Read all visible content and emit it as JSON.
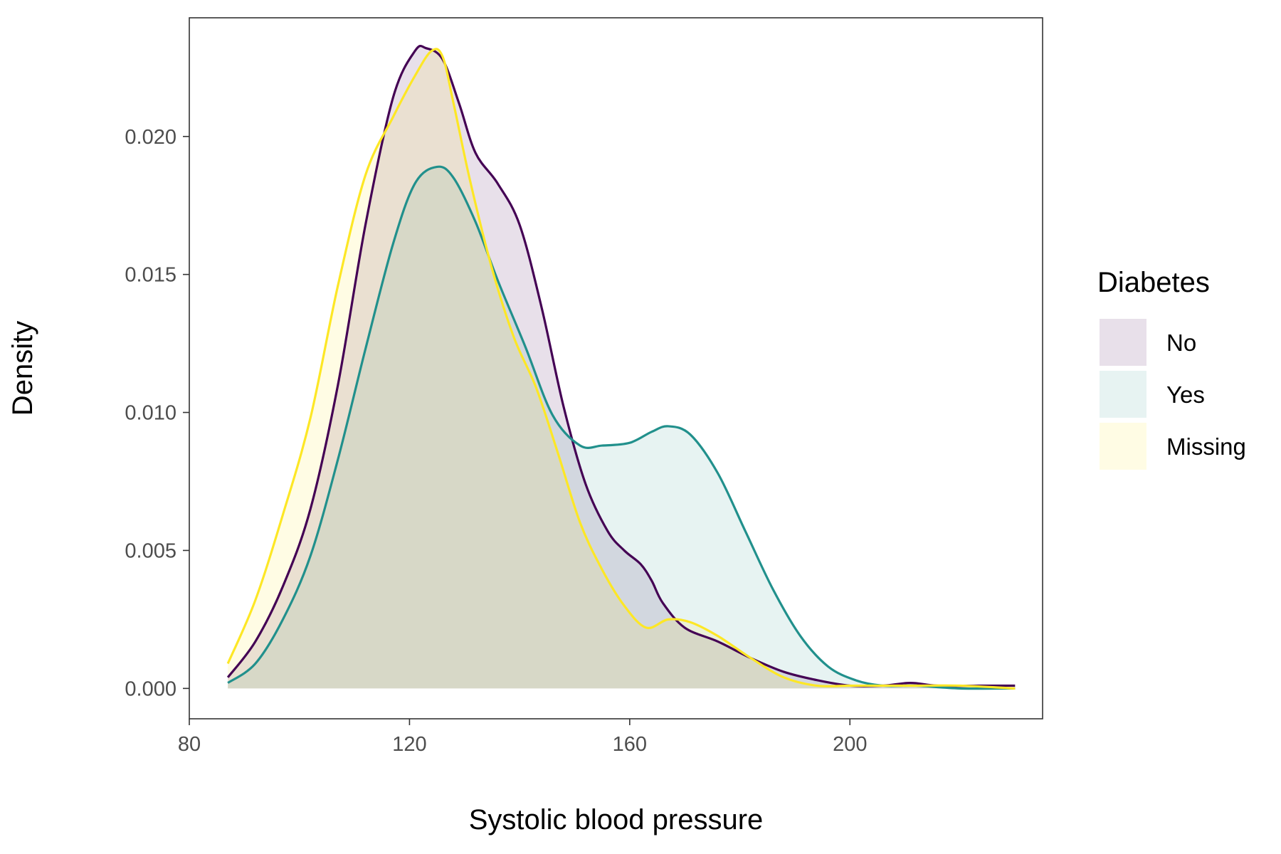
{
  "chart_data": {
    "type": "area",
    "xlabel": "Systolic blood pressure",
    "ylabel": "Density",
    "xlim": [
      80,
      235
    ],
    "ylim": [
      -0.0011,
      0.0243
    ],
    "x_ticks": [
      80,
      120,
      160,
      200
    ],
    "x_tick_labels": [
      "80",
      "120",
      "160",
      "200"
    ],
    "y_ticks": [
      0.0,
      0.005,
      0.01,
      0.015,
      0.02
    ],
    "y_tick_labels": [
      "0.000",
      "0.005",
      "0.010",
      "0.015",
      "0.020"
    ],
    "grid": false,
    "legend": {
      "title": "Diabetes",
      "placement": "right"
    },
    "series": [
      {
        "name": "No",
        "line_color": "#440154",
        "fill_color": "#440154",
        "fill_opacity": 0.12,
        "points": [
          [
            87,
            0.0004
          ],
          [
            92,
            0.0017
          ],
          [
            97,
            0.0037
          ],
          [
            102,
            0.0065
          ],
          [
            107,
            0.011
          ],
          [
            112,
            0.0168
          ],
          [
            117,
            0.0214
          ],
          [
            121,
            0.0231
          ],
          [
            123,
            0.0232
          ],
          [
            126,
            0.0228
          ],
          [
            129,
            0.0212
          ],
          [
            132,
            0.0194
          ],
          [
            136,
            0.0183
          ],
          [
            140,
            0.0168
          ],
          [
            144,
            0.0138
          ],
          [
            148,
            0.0102
          ],
          [
            152,
            0.0074
          ],
          [
            156,
            0.0057
          ],
          [
            159,
            0.005
          ],
          [
            162,
            0.0045
          ],
          [
            164,
            0.0039
          ],
          [
            166,
            0.0031
          ],
          [
            170,
            0.0022
          ],
          [
            176,
            0.0017
          ],
          [
            182,
            0.0011
          ],
          [
            188,
            0.0006
          ],
          [
            194,
            0.0003
          ],
          [
            200,
            0.0001
          ],
          [
            206,
            0.0001
          ],
          [
            211,
            0.0002
          ],
          [
            216,
            0.0001
          ],
          [
            224,
            0.0001
          ],
          [
            230,
            0.0001
          ]
        ]
      },
      {
        "name": "Yes",
        "line_color": "#21908C",
        "fill_color": "#21908C",
        "fill_opacity": 0.11,
        "points": [
          [
            87,
            0.0002
          ],
          [
            92,
            0.0009
          ],
          [
            97,
            0.0025
          ],
          [
            102,
            0.0048
          ],
          [
            107,
            0.0083
          ],
          [
            112,
            0.0123
          ],
          [
            117,
            0.0161
          ],
          [
            121,
            0.0183
          ],
          [
            125,
            0.0189
          ],
          [
            128,
            0.0185
          ],
          [
            132,
            0.0169
          ],
          [
            136,
            0.0148
          ],
          [
            141,
            0.0124
          ],
          [
            146,
            0.0099
          ],
          [
            151,
            0.0088
          ],
          [
            155,
            0.0088
          ],
          [
            160,
            0.0089
          ],
          [
            164,
            0.0093
          ],
          [
            167,
            0.0095
          ],
          [
            171,
            0.0092
          ],
          [
            176,
            0.0078
          ],
          [
            181,
            0.0057
          ],
          [
            186,
            0.0036
          ],
          [
            191,
            0.0019
          ],
          [
            196,
            0.0008
          ],
          [
            201,
            0.0003
          ],
          [
            206,
            0.0001
          ],
          [
            212,
            0.0001
          ],
          [
            220,
            0.0
          ],
          [
            230,
            0.0
          ]
        ]
      },
      {
        "name": "Missing",
        "line_color": "#FDE725",
        "fill_color": "#FDE725",
        "fill_opacity": 0.12,
        "points": [
          [
            87,
            0.0009
          ],
          [
            92,
            0.0032
          ],
          [
            97,
            0.0063
          ],
          [
            102,
            0.0098
          ],
          [
            107,
            0.0146
          ],
          [
            112,
            0.0186
          ],
          [
            117,
            0.0207
          ],
          [
            121,
            0.0222
          ],
          [
            124,
            0.0231
          ],
          [
            126,
            0.0229
          ],
          [
            128,
            0.0212
          ],
          [
            131,
            0.0184
          ],
          [
            135,
            0.0152
          ],
          [
            139,
            0.0127
          ],
          [
            143,
            0.0109
          ],
          [
            147,
            0.0085
          ],
          [
            151,
            0.006
          ],
          [
            155,
            0.0043
          ],
          [
            159,
            0.003
          ],
          [
            163,
            0.0022
          ],
          [
            167,
            0.0025
          ],
          [
            171,
            0.0024
          ],
          [
            176,
            0.0019
          ],
          [
            182,
            0.0011
          ],
          [
            188,
            0.0004
          ],
          [
            194,
            0.0001
          ],
          [
            200,
            0.0001
          ],
          [
            206,
            0.0001
          ],
          [
            212,
            0.0001
          ],
          [
            220,
            0.0001
          ],
          [
            230,
            0.0
          ]
        ]
      }
    ]
  }
}
